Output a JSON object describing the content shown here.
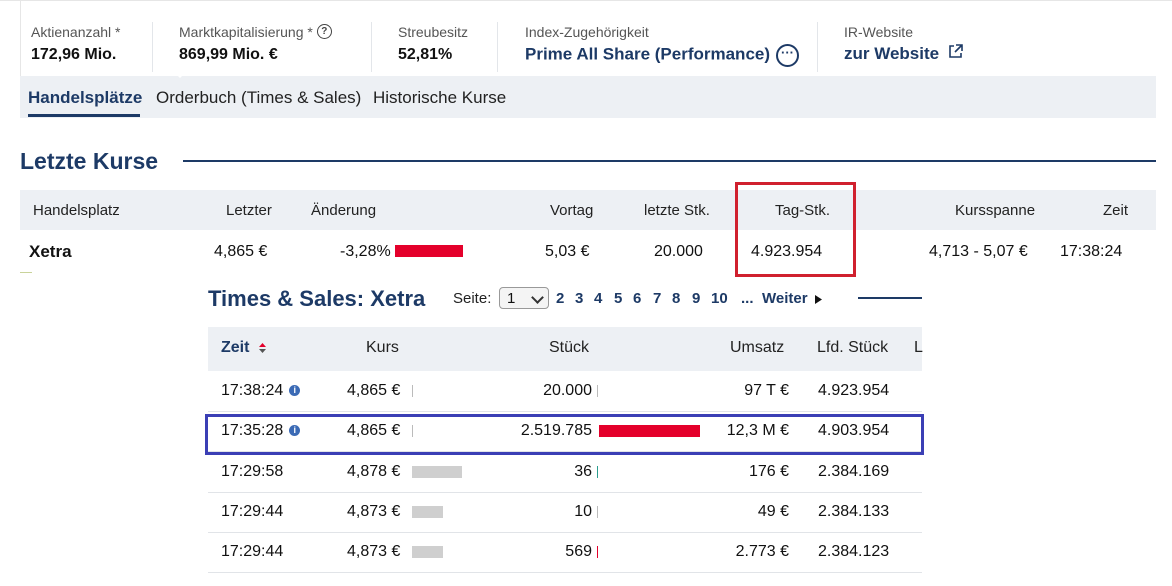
{
  "stats": [
    {
      "label": "Aktienanzahl *",
      "value": "172,96 Mio."
    },
    {
      "label": "Marktkapitalisierung *",
      "value": "869,99 Mio. €"
    },
    {
      "label": "Streubesitz",
      "value": "52,81%"
    },
    {
      "label": "Index-Zugehörigkeit",
      "value": "Prime All Share (Performance)"
    },
    {
      "label": "IR-Website",
      "value": "zur Website"
    }
  ],
  "help_glyph": "?",
  "more_glyph": "···",
  "tabs": [
    {
      "label": "Handelsplätze",
      "active": true
    },
    {
      "label": "Orderbuch (Times & Sales)",
      "active": false
    },
    {
      "label": "Historische Kurse",
      "active": false
    }
  ],
  "last_prices": {
    "title": "Letzte Kurse",
    "columns": [
      "Handelsplatz",
      "Letzter",
      "Änderung",
      "Vortag",
      "letzte Stk.",
      "Tag-Stk.",
      "Kursspanne",
      "Zeit"
    ],
    "row": {
      "venue": "Xetra",
      "last": "4,865 €",
      "change": "-3,28%",
      "change_bar": 0.8,
      "previous": "5,03 €",
      "last_qty": "20.000",
      "day_qty": "4.923.954",
      "range": "4,713 - 5,07 €",
      "time": "17:38:24"
    }
  },
  "times_sales": {
    "title": "Times & Sales: Xetra",
    "page_label": "Seite:",
    "page_selected": "1",
    "pages": [
      "2",
      "3",
      "4",
      "5",
      "6",
      "7",
      "8",
      "9",
      "10"
    ],
    "ellipsis": "...",
    "next_label": "Weiter",
    "columns": [
      "Zeit",
      "Kurs",
      "Stück",
      "Umsatz",
      "Lfd. Stück",
      "L"
    ],
    "info_glyph": "i",
    "rows": [
      {
        "time": "17:38:24",
        "info": true,
        "price": "4,865 €",
        "price_bar": 0,
        "qty": "20.000",
        "qty_bar": 0,
        "qty_bar_color": "#bbbbbb",
        "turnover": "97 T €",
        "cum_qty": "4.923.954"
      },
      {
        "time": "17:35:28",
        "info": true,
        "price": "4,865 €",
        "price_bar": 0,
        "qty": "2.519.785",
        "qty_bar": 1.0,
        "qty_bar_color": "#e4002b",
        "turnover": "12,3 M €",
        "cum_qty": "4.903.954"
      },
      {
        "time": "17:29:58",
        "info": false,
        "price": "4,878 €",
        "price_bar": 1.0,
        "qty": "36",
        "qty_bar": 0,
        "qty_bar_color": "#2a9d8f",
        "turnover": "176 €",
        "cum_qty": "2.384.169"
      },
      {
        "time": "17:29:44",
        "info": false,
        "price": "4,873 €",
        "price_bar": 0.62,
        "qty": "10",
        "qty_bar": 0,
        "qty_bar_color": "#bbbbbb",
        "turnover": "49 €",
        "cum_qty": "2.384.133"
      },
      {
        "time": "17:29:44",
        "info": false,
        "price": "4,873 €",
        "price_bar": 0.62,
        "qty": "569",
        "qty_bar": 0,
        "qty_bar_color": "#e4002b",
        "turnover": "2.773 €",
        "cum_qty": "2.384.123"
      }
    ]
  },
  "highlight_colors": {
    "red_box": "#d0202e",
    "blue_box": "#3b3fb5",
    "bar_red": "#e4002b",
    "bar_gray": "#cfcfcf"
  }
}
